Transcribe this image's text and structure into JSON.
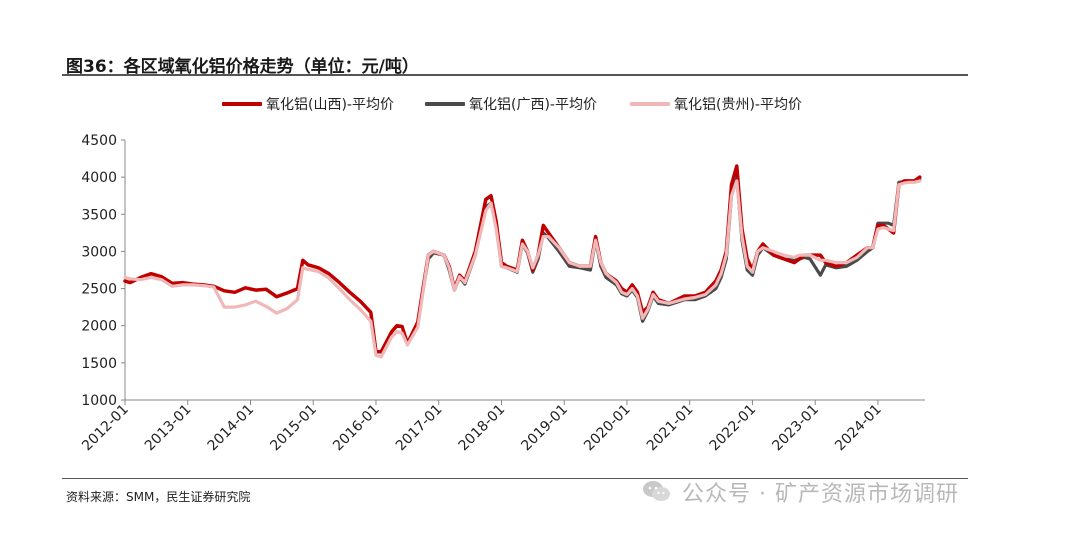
{
  "figure": {
    "title": "图36：各区域氧化铝价格走势（单位：元/吨）",
    "source": "资料来源：SMM，民生证券研究院",
    "watermark": "公众号 · 矿产资源市场调研",
    "watermark_icon": "wechat-icon"
  },
  "chart_data": {
    "type": "line",
    "title": "",
    "xlabel": "",
    "ylabel": "",
    "ylim": [
      1000,
      4500
    ],
    "yticks": [
      1000,
      1500,
      2000,
      2500,
      3000,
      3500,
      4000,
      4500
    ],
    "xticks": [
      "2012-01",
      "2013-01",
      "2014-01",
      "2015-01",
      "2016-01",
      "2017-01",
      "2018-01",
      "2019-01",
      "2020-01",
      "2021-01",
      "2022-01",
      "2023-01",
      "2024-01"
    ],
    "grid": false,
    "legend_position": "top",
    "series": [
      {
        "name": "氧化铝(山西)-平均价",
        "color": "#c00000",
        "points": [
          [
            "2012-01",
            2600
          ],
          [
            "2012-02",
            2580
          ],
          [
            "2012-04",
            2650
          ],
          [
            "2012-06",
            2700
          ],
          [
            "2012-08",
            2660
          ],
          [
            "2012-10",
            2570
          ],
          [
            "2012-12",
            2580
          ],
          [
            "2013-02",
            2560
          ],
          [
            "2013-04",
            2550
          ],
          [
            "2013-06",
            2530
          ],
          [
            "2013-08",
            2470
          ],
          [
            "2013-10",
            2450
          ],
          [
            "2013-12",
            2510
          ],
          [
            "2014-02",
            2480
          ],
          [
            "2014-04",
            2490
          ],
          [
            "2014-06",
            2390
          ],
          [
            "2014-08",
            2440
          ],
          [
            "2014-10",
            2500
          ],
          [
            "2014-11",
            2880
          ],
          [
            "2014-12",
            2820
          ],
          [
            "2015-02",
            2780
          ],
          [
            "2015-04",
            2700
          ],
          [
            "2015-06",
            2580
          ],
          [
            "2015-08",
            2450
          ],
          [
            "2015-10",
            2330
          ],
          [
            "2015-12",
            2180
          ],
          [
            "2016-01",
            1650
          ],
          [
            "2016-02",
            1650
          ],
          [
            "2016-04",
            1920
          ],
          [
            "2016-05",
            2000
          ],
          [
            "2016-06",
            1990
          ],
          [
            "2016-07",
            1760
          ],
          [
            "2016-09",
            2050
          ],
          [
            "2016-10",
            2500
          ],
          [
            "2016-11",
            2950
          ],
          [
            "2016-12",
            3000
          ],
          [
            "2017-02",
            2950
          ],
          [
            "2017-03",
            2800
          ],
          [
            "2017-04",
            2500
          ],
          [
            "2017-05",
            2680
          ],
          [
            "2017-06",
            2600
          ],
          [
            "2017-08",
            3000
          ],
          [
            "2017-10",
            3700
          ],
          [
            "2017-11",
            3750
          ],
          [
            "2017-12",
            3400
          ],
          [
            "2018-01",
            2850
          ],
          [
            "2018-02",
            2800
          ],
          [
            "2018-04",
            2750
          ],
          [
            "2018-05",
            3150
          ],
          [
            "2018-06",
            3000
          ],
          [
            "2018-07",
            2750
          ],
          [
            "2018-08",
            2950
          ],
          [
            "2018-09",
            3350
          ],
          [
            "2018-10",
            3250
          ],
          [
            "2018-12",
            3050
          ],
          [
            "2019-02",
            2850
          ],
          [
            "2019-04",
            2800
          ],
          [
            "2019-06",
            2800
          ],
          [
            "2019-07",
            3200
          ],
          [
            "2019-08",
            2850
          ],
          [
            "2019-09",
            2700
          ],
          [
            "2019-11",
            2600
          ],
          [
            "2019-12",
            2500
          ],
          [
            "2020-01",
            2450
          ],
          [
            "2020-02",
            2550
          ],
          [
            "2020-03",
            2450
          ],
          [
            "2020-04",
            2180
          ],
          [
            "2020-05",
            2250
          ],
          [
            "2020-06",
            2450
          ],
          [
            "2020-07",
            2350
          ],
          [
            "2020-09",
            2300
          ],
          [
            "2020-12",
            2400
          ],
          [
            "2021-02",
            2400
          ],
          [
            "2021-04",
            2450
          ],
          [
            "2021-06",
            2600
          ],
          [
            "2021-07",
            2750
          ],
          [
            "2021-08",
            3000
          ],
          [
            "2021-09",
            3900
          ],
          [
            "2021-10",
            4150
          ],
          [
            "2021-11",
            3300
          ],
          [
            "2021-12",
            2900
          ],
          [
            "2022-01",
            2750
          ],
          [
            "2022-02",
            3000
          ],
          [
            "2022-03",
            3100
          ],
          [
            "2022-05",
            2950
          ],
          [
            "2022-07",
            2900
          ],
          [
            "2022-09",
            2850
          ],
          [
            "2022-10",
            2900
          ],
          [
            "2022-11",
            2950
          ],
          [
            "2022-12",
            2950
          ],
          [
            "2023-02",
            2950
          ],
          [
            "2023-03",
            2850
          ],
          [
            "2023-05",
            2800
          ],
          [
            "2023-07",
            2850
          ],
          [
            "2023-09",
            2950
          ],
          [
            "2023-11",
            3050
          ],
          [
            "2023-12",
            3050
          ],
          [
            "2024-01",
            3350
          ],
          [
            "2024-02",
            3350
          ],
          [
            "2024-03",
            3300
          ],
          [
            "2024-04",
            3250
          ],
          [
            "2024-05",
            3900
          ],
          [
            "2024-06",
            3950
          ],
          [
            "2024-07",
            3950
          ],
          [
            "2024-08",
            3950
          ],
          [
            "2024-09",
            4000
          ]
        ]
      },
      {
        "name": "氧化铝(广西)-平均价",
        "color": "#4a4a4a",
        "points": [
          [
            "2016-10",
            2480
          ],
          [
            "2016-11",
            2900
          ],
          [
            "2016-12",
            2980
          ],
          [
            "2017-02",
            2950
          ],
          [
            "2017-03",
            2750
          ],
          [
            "2017-04",
            2480
          ],
          [
            "2017-05",
            2650
          ],
          [
            "2017-06",
            2560
          ],
          [
            "2017-08",
            2950
          ],
          [
            "2017-10",
            3600
          ],
          [
            "2017-11",
            3650
          ],
          [
            "2017-12",
            3350
          ],
          [
            "2018-01",
            2800
          ],
          [
            "2018-02",
            2780
          ],
          [
            "2018-04",
            2720
          ],
          [
            "2018-05",
            3100
          ],
          [
            "2018-06",
            2980
          ],
          [
            "2018-07",
            2720
          ],
          [
            "2018-08",
            2900
          ],
          [
            "2018-09",
            3250
          ],
          [
            "2018-10",
            3180
          ],
          [
            "2018-12",
            3000
          ],
          [
            "2019-02",
            2800
          ],
          [
            "2019-04",
            2780
          ],
          [
            "2019-06",
            2750
          ],
          [
            "2019-07",
            3150
          ],
          [
            "2019-08",
            2800
          ],
          [
            "2019-09",
            2650
          ],
          [
            "2019-11",
            2550
          ],
          [
            "2019-12",
            2430
          ],
          [
            "2020-01",
            2400
          ],
          [
            "2020-02",
            2480
          ],
          [
            "2020-03",
            2380
          ],
          [
            "2020-04",
            2060
          ],
          [
            "2020-05",
            2200
          ],
          [
            "2020-06",
            2400
          ],
          [
            "2020-07",
            2300
          ],
          [
            "2020-09",
            2280
          ],
          [
            "2020-12",
            2350
          ],
          [
            "2021-02",
            2350
          ],
          [
            "2021-04",
            2400
          ],
          [
            "2021-06",
            2500
          ],
          [
            "2021-07",
            2650
          ],
          [
            "2021-08",
            2900
          ],
          [
            "2021-09",
            3750
          ],
          [
            "2021-10",
            4000
          ],
          [
            "2021-11",
            3150
          ],
          [
            "2021-12",
            2750
          ],
          [
            "2022-01",
            2680
          ],
          [
            "2022-02",
            2950
          ],
          [
            "2022-03",
            3050
          ],
          [
            "2022-05",
            2950
          ],
          [
            "2022-07",
            2900
          ],
          [
            "2022-09",
            2880
          ],
          [
            "2022-10",
            2900
          ],
          [
            "2022-11",
            2920
          ],
          [
            "2022-12",
            2900
          ],
          [
            "2023-02",
            2680
          ],
          [
            "2023-03",
            2820
          ],
          [
            "2023-05",
            2780
          ],
          [
            "2023-07",
            2800
          ],
          [
            "2023-09",
            2880
          ],
          [
            "2023-11",
            3000
          ],
          [
            "2023-12",
            3050
          ],
          [
            "2024-01",
            3380
          ],
          [
            "2024-02",
            3380
          ],
          [
            "2024-03",
            3380
          ],
          [
            "2024-04",
            3350
          ],
          [
            "2024-05",
            3930
          ],
          [
            "2024-06",
            3940
          ],
          [
            "2024-07",
            3940
          ],
          [
            "2024-08",
            3950
          ],
          [
            "2024-09",
            3970
          ]
        ]
      },
      {
        "name": "氧化铝(贵州)-平均价",
        "color": "#f0b8b8",
        "points": [
          [
            "2012-01",
            2650
          ],
          [
            "2012-02",
            2630
          ],
          [
            "2012-04",
            2620
          ],
          [
            "2012-06",
            2650
          ],
          [
            "2012-08",
            2620
          ],
          [
            "2012-10",
            2530
          ],
          [
            "2012-12",
            2550
          ],
          [
            "2013-02",
            2550
          ],
          [
            "2013-04",
            2540
          ],
          [
            "2013-06",
            2520
          ],
          [
            "2013-08",
            2250
          ],
          [
            "2013-10",
            2250
          ],
          [
            "2013-12",
            2280
          ],
          [
            "2014-02",
            2330
          ],
          [
            "2014-04",
            2260
          ],
          [
            "2014-06",
            2170
          ],
          [
            "2014-08",
            2230
          ],
          [
            "2014-10",
            2350
          ],
          [
            "2014-11",
            2780
          ],
          [
            "2014-12",
            2760
          ],
          [
            "2015-02",
            2730
          ],
          [
            "2015-04",
            2640
          ],
          [
            "2015-06",
            2500
          ],
          [
            "2015-08",
            2350
          ],
          [
            "2015-10",
            2220
          ],
          [
            "2015-12",
            2060
          ],
          [
            "2016-01",
            1600
          ],
          [
            "2016-02",
            1580
          ],
          [
            "2016-04",
            1850
          ],
          [
            "2016-05",
            1920
          ],
          [
            "2016-06",
            1900
          ],
          [
            "2016-07",
            1740
          ],
          [
            "2016-09",
            1980
          ],
          [
            "2016-10",
            2450
          ],
          [
            "2016-11",
            2950
          ],
          [
            "2016-12",
            3000
          ],
          [
            "2017-02",
            2950
          ],
          [
            "2017-03",
            2780
          ],
          [
            "2017-04",
            2480
          ],
          [
            "2017-05",
            2660
          ],
          [
            "2017-06",
            2580
          ],
          [
            "2017-08",
            2950
          ],
          [
            "2017-10",
            3550
          ],
          [
            "2017-11",
            3650
          ],
          [
            "2017-12",
            3300
          ],
          [
            "2018-01",
            2800
          ],
          [
            "2018-02",
            2780
          ],
          [
            "2018-04",
            2730
          ],
          [
            "2018-05",
            3100
          ],
          [
            "2018-06",
            3000
          ],
          [
            "2018-07",
            2780
          ],
          [
            "2018-08",
            2950
          ],
          [
            "2018-09",
            3200
          ],
          [
            "2018-10",
            3200
          ],
          [
            "2018-12",
            3050
          ],
          [
            "2019-02",
            2850
          ],
          [
            "2019-04",
            2800
          ],
          [
            "2019-06",
            2800
          ],
          [
            "2019-07",
            3150
          ],
          [
            "2019-08",
            2850
          ],
          [
            "2019-09",
            2700
          ],
          [
            "2019-11",
            2580
          ],
          [
            "2019-12",
            2450
          ],
          [
            "2020-01",
            2420
          ],
          [
            "2020-02",
            2500
          ],
          [
            "2020-03",
            2400
          ],
          [
            "2020-04",
            2100
          ],
          [
            "2020-05",
            2220
          ],
          [
            "2020-06",
            2420
          ],
          [
            "2020-07",
            2330
          ],
          [
            "2020-09",
            2300
          ],
          [
            "2020-12",
            2360
          ],
          [
            "2021-02",
            2380
          ],
          [
            "2021-04",
            2420
          ],
          [
            "2021-06",
            2550
          ],
          [
            "2021-07",
            2700
          ],
          [
            "2021-08",
            2950
          ],
          [
            "2021-09",
            3750
          ],
          [
            "2021-10",
            3950
          ],
          [
            "2021-11",
            3200
          ],
          [
            "2021-12",
            2800
          ],
          [
            "2022-01",
            2720
          ],
          [
            "2022-02",
            3000
          ],
          [
            "2022-03",
            3050
          ],
          [
            "2022-05",
            3000
          ],
          [
            "2022-07",
            2950
          ],
          [
            "2022-09",
            2920
          ],
          [
            "2022-10",
            2950
          ],
          [
            "2022-11",
            2950
          ],
          [
            "2022-12",
            2950
          ],
          [
            "2023-02",
            2880
          ],
          [
            "2023-03",
            2880
          ],
          [
            "2023-05",
            2850
          ],
          [
            "2023-07",
            2850
          ],
          [
            "2023-09",
            2920
          ],
          [
            "2023-11",
            3050
          ],
          [
            "2023-12",
            3050
          ],
          [
            "2024-01",
            3300
          ],
          [
            "2024-02",
            3320
          ],
          [
            "2024-03",
            3300
          ],
          [
            "2024-04",
            3280
          ],
          [
            "2024-05",
            3900
          ],
          [
            "2024-06",
            3920
          ],
          [
            "2024-07",
            3930
          ],
          [
            "2024-08",
            3930
          ],
          [
            "2024-09",
            3950
          ]
        ]
      }
    ]
  }
}
